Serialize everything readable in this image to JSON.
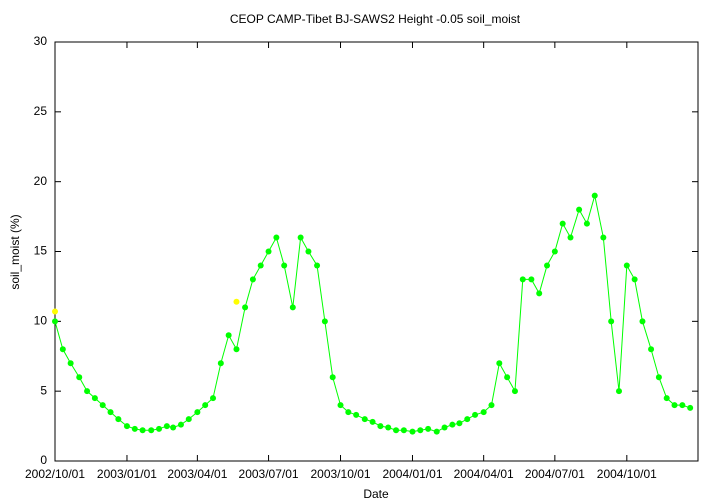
{
  "chart_data": {
    "type": "line",
    "title": "CEOP CAMP-Tibet BJ-SAWS2 Height -0.05 soil_moist",
    "x_label": "Date",
    "y_label": "soil_moist (%)",
    "series": [
      {
        "color": "#00ff00",
        "x": [
          "2002/10/01",
          "2002/10/11",
          "2002/10/21",
          "2002/11/01",
          "2002/11/11",
          "2002/11/21",
          "2002/12/01",
          "2002/12/11",
          "2002/12/21",
          "2003/01/01",
          "2003/01/11",
          "2003/01/21",
          "2003/02/01",
          "2003/02/11",
          "2003/02/21",
          "2003/03/01",
          "2003/03/11",
          "2003/03/21",
          "2003/04/01",
          "2003/04/11",
          "2003/04/21",
          "2003/05/01",
          "2003/05/11",
          "2003/05/21",
          "2003/06/01",
          "2003/06/11",
          "2003/06/21",
          "2003/07/01",
          "2003/07/11",
          "2003/07/21",
          "2003/08/01",
          "2003/08/11",
          "2003/08/21",
          "2003/09/01",
          "2003/09/11",
          "2003/09/21",
          "2003/10/01",
          "2003/10/11",
          "2003/10/21",
          "2003/11/01",
          "2003/11/11",
          "2003/11/21",
          "2003/12/01",
          "2003/12/11",
          "2003/12/21",
          "2004/01/01",
          "2004/01/11",
          "2004/01/21",
          "2004/02/01",
          "2004/02/11",
          "2004/02/21",
          "2004/03/01",
          "2004/03/11",
          "2004/03/21",
          "2004/04/01",
          "2004/04/11",
          "2004/04/21",
          "2004/05/01",
          "2004/05/11",
          "2004/05/21",
          "2004/06/01",
          "2004/06/11",
          "2004/06/21",
          "2004/07/01",
          "2004/07/11",
          "2004/07/21",
          "2004/08/01",
          "2004/08/11",
          "2004/08/21",
          "2004/09/01",
          "2004/09/11",
          "2004/09/21",
          "2004/10/01",
          "2004/10/11",
          "2004/10/21",
          "2004/11/01",
          "2004/11/11",
          "2004/11/21",
          "2004/12/01",
          "2004/12/11",
          "2004/12/21"
        ],
        "values": [
          10,
          8,
          7,
          6,
          5,
          4.5,
          4,
          3.5,
          3,
          2.5,
          2.3,
          2.2,
          2.2,
          2.3,
          2.5,
          2.4,
          2.6,
          3,
          3.5,
          4,
          4.5,
          7,
          9,
          8,
          11,
          13,
          14,
          15,
          16,
          14,
          11,
          16,
          15,
          14,
          10,
          6,
          4,
          3.5,
          3.3,
          3,
          2.8,
          2.5,
          2.4,
          2.2,
          2.2,
          2.1,
          2.2,
          2.3,
          2.1,
          2.4,
          2.6,
          2.7,
          3,
          3.3,
          3.5,
          4,
          7,
          6,
          5,
          13,
          13,
          12,
          14,
          15,
          17,
          16,
          18,
          17,
          19,
          16,
          10,
          5,
          14,
          13,
          10,
          8,
          6,
          4.5,
          4,
          4,
          3.8
        ]
      },
      {
        "color": "#ffff00",
        "x": [
          "2002/10/01",
          "2003/05/21"
        ],
        "values": [
          10.7,
          11.4
        ]
      }
    ],
    "xlim": [
      "2002/10/01",
      "2004/12/31"
    ],
    "xticks": [
      "2002/10/01",
      "2003/01/01",
      "2003/04/01",
      "2003/07/01",
      "2003/10/01",
      "2004/01/01",
      "2004/04/01",
      "2004/07/01",
      "2004/10/01"
    ],
    "ylim": [
      0,
      30
    ],
    "yticks": [
      0,
      5,
      10,
      15,
      20,
      25,
      30
    ],
    "grid": false
  }
}
